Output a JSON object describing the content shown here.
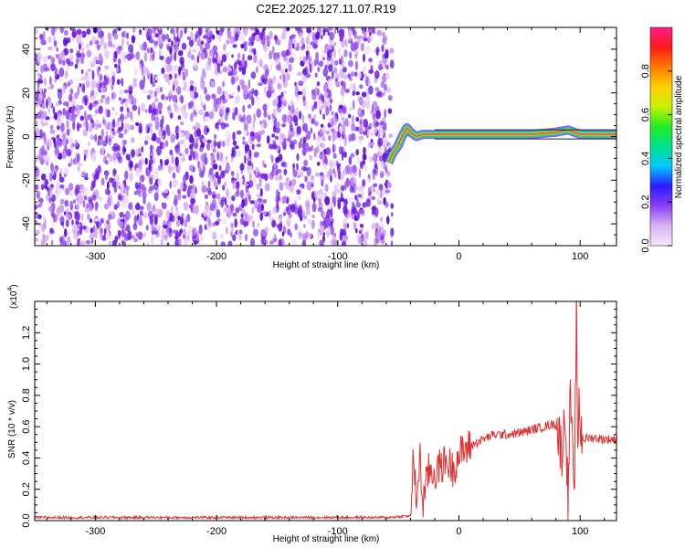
{
  "title": "C2E2.2025.127.11.07.R19",
  "colors": {
    "spec_dots": "#7a1fe8",
    "ridge_line": "#e83a8a",
    "snr_line": "#e03030",
    "colorbar_stops": [
      "#f7e8fb",
      "#d9b3f3",
      "#8b3ff0",
      "#2b1bff",
      "#00c8ff",
      "#00e28a",
      "#22ee22",
      "#c8f000",
      "#ffd000",
      "#ff7a00",
      "#ff1a1a",
      "#ff1a8a"
    ]
  },
  "chart_data": [
    {
      "type": "heatmap",
      "xlabel": "Height of straight line (km)",
      "ylabel": "Frequency (Hz)",
      "xlim": [
        -350,
        130
      ],
      "ylim": [
        -50,
        50
      ],
      "xticks": [
        -300,
        -200,
        -100,
        0,
        100
      ],
      "yticks": [
        -40,
        -20,
        0,
        20,
        40
      ],
      "noise_region": [
        -350,
        -55
      ],
      "signal_ridge": {
        "x": [
          -58,
          -55,
          -50,
          -47,
          -43,
          -40,
          -35,
          -30,
          -20,
          0,
          60,
          80,
          90,
          95,
          100,
          110,
          130
        ],
        "y": [
          -12,
          -8,
          -4,
          0,
          4,
          2,
          0,
          1,
          1,
          1,
          1,
          2,
          3,
          2,
          1,
          1,
          1
        ]
      },
      "colorbar": {
        "label": "Normalized spectral amplitude",
        "range": [
          0,
          1
        ],
        "ticks": [
          0.0,
          0.2,
          0.4,
          0.6,
          0.8
        ]
      }
    },
    {
      "type": "line",
      "xlabel": "Height of straight line (km)",
      "ylabel": "SNR (10 * v/v)",
      "scale_note": "(x10",
      "scale_exp": "4",
      "xlim": [
        -350,
        130
      ],
      "ylim": [
        0,
        1.4
      ],
      "xticks": [
        -300,
        -200,
        -100,
        0,
        100
      ],
      "yticks": [
        0.0,
        0.2,
        0.4,
        0.6,
        0.8,
        1.0,
        1.2
      ],
      "series": [
        {
          "x": [
            -350,
            -300,
            -250,
            -200,
            -150,
            -100,
            -60,
            -40,
            -38,
            -35,
            -32,
            -30,
            -25,
            -20,
            -15,
            -10,
            -5,
            0,
            10,
            20,
            30,
            40,
            50,
            60,
            70,
            80,
            85,
            88,
            90,
            92,
            95,
            97,
            98,
            99,
            100,
            103,
            110,
            120,
            130
          ],
          "y": [
            0.02,
            0.02,
            0.02,
            0.02,
            0.02,
            0.02,
            0.02,
            0.03,
            0.35,
            0.15,
            0.4,
            0.1,
            0.32,
            0.3,
            0.35,
            0.38,
            0.33,
            0.42,
            0.48,
            0.52,
            0.55,
            0.55,
            0.56,
            0.58,
            0.6,
            0.62,
            0.45,
            0.7,
            0.1,
            0.85,
            0.05,
            1.35,
            0.3,
            0.9,
            0.58,
            0.52,
            0.53,
            0.52,
            0.52
          ]
        }
      ]
    }
  ]
}
